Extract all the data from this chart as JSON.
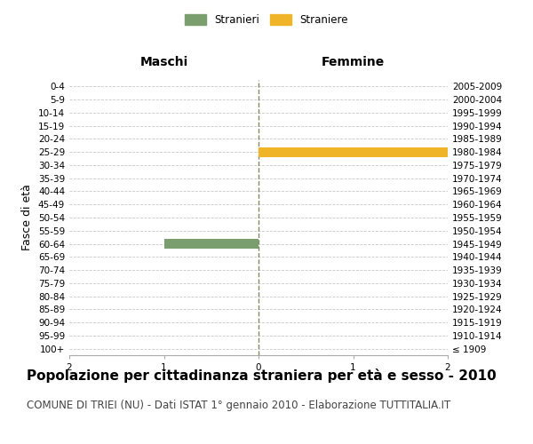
{
  "age_groups": [
    "100+",
    "95-99",
    "90-94",
    "85-89",
    "80-84",
    "75-79",
    "70-74",
    "65-69",
    "60-64",
    "55-59",
    "50-54",
    "45-49",
    "40-44",
    "35-39",
    "30-34",
    "25-29",
    "20-24",
    "15-19",
    "10-14",
    "5-9",
    "0-4"
  ],
  "birth_years": [
    "≤ 1909",
    "1910-1914",
    "1915-1919",
    "1920-1924",
    "1925-1929",
    "1930-1934",
    "1935-1939",
    "1940-1944",
    "1945-1949",
    "1950-1954",
    "1955-1959",
    "1960-1964",
    "1965-1969",
    "1970-1974",
    "1975-1979",
    "1980-1984",
    "1985-1989",
    "1990-1994",
    "1995-1999",
    "2000-2004",
    "2005-2009"
  ],
  "males": [
    0,
    0,
    0,
    0,
    0,
    0,
    0,
    0,
    1,
    0,
    0,
    0,
    0,
    0,
    0,
    0,
    0,
    0,
    0,
    0,
    0
  ],
  "females": [
    0,
    0,
    0,
    0,
    0,
    0,
    0,
    0,
    0,
    0,
    0,
    0,
    0,
    0,
    0,
    2,
    0,
    0,
    0,
    0,
    0
  ],
  "male_color": "#7a9e6e",
  "female_color": "#f0b429",
  "xlim": 2,
  "title": "Popolazione per cittadinanza straniera per età e sesso - 2010",
  "subtitle": "COMUNE DI TRIEI (NU) - Dati ISTAT 1° gennaio 2010 - Elaborazione TUTTITALIA.IT",
  "left_label": "Maschi",
  "right_label": "Femmine",
  "ylabel_left": "Fasce di età",
  "legend_male": "Stranieri",
  "legend_female": "Straniere",
  "background_color": "#ffffff",
  "grid_color": "#c8c8c8",
  "bar_height": 0.75,
  "title_fontsize": 11,
  "subtitle_fontsize": 8.5,
  "axis_label_fontsize": 9,
  "tick_fontsize": 7.5,
  "header_fontsize": 10
}
